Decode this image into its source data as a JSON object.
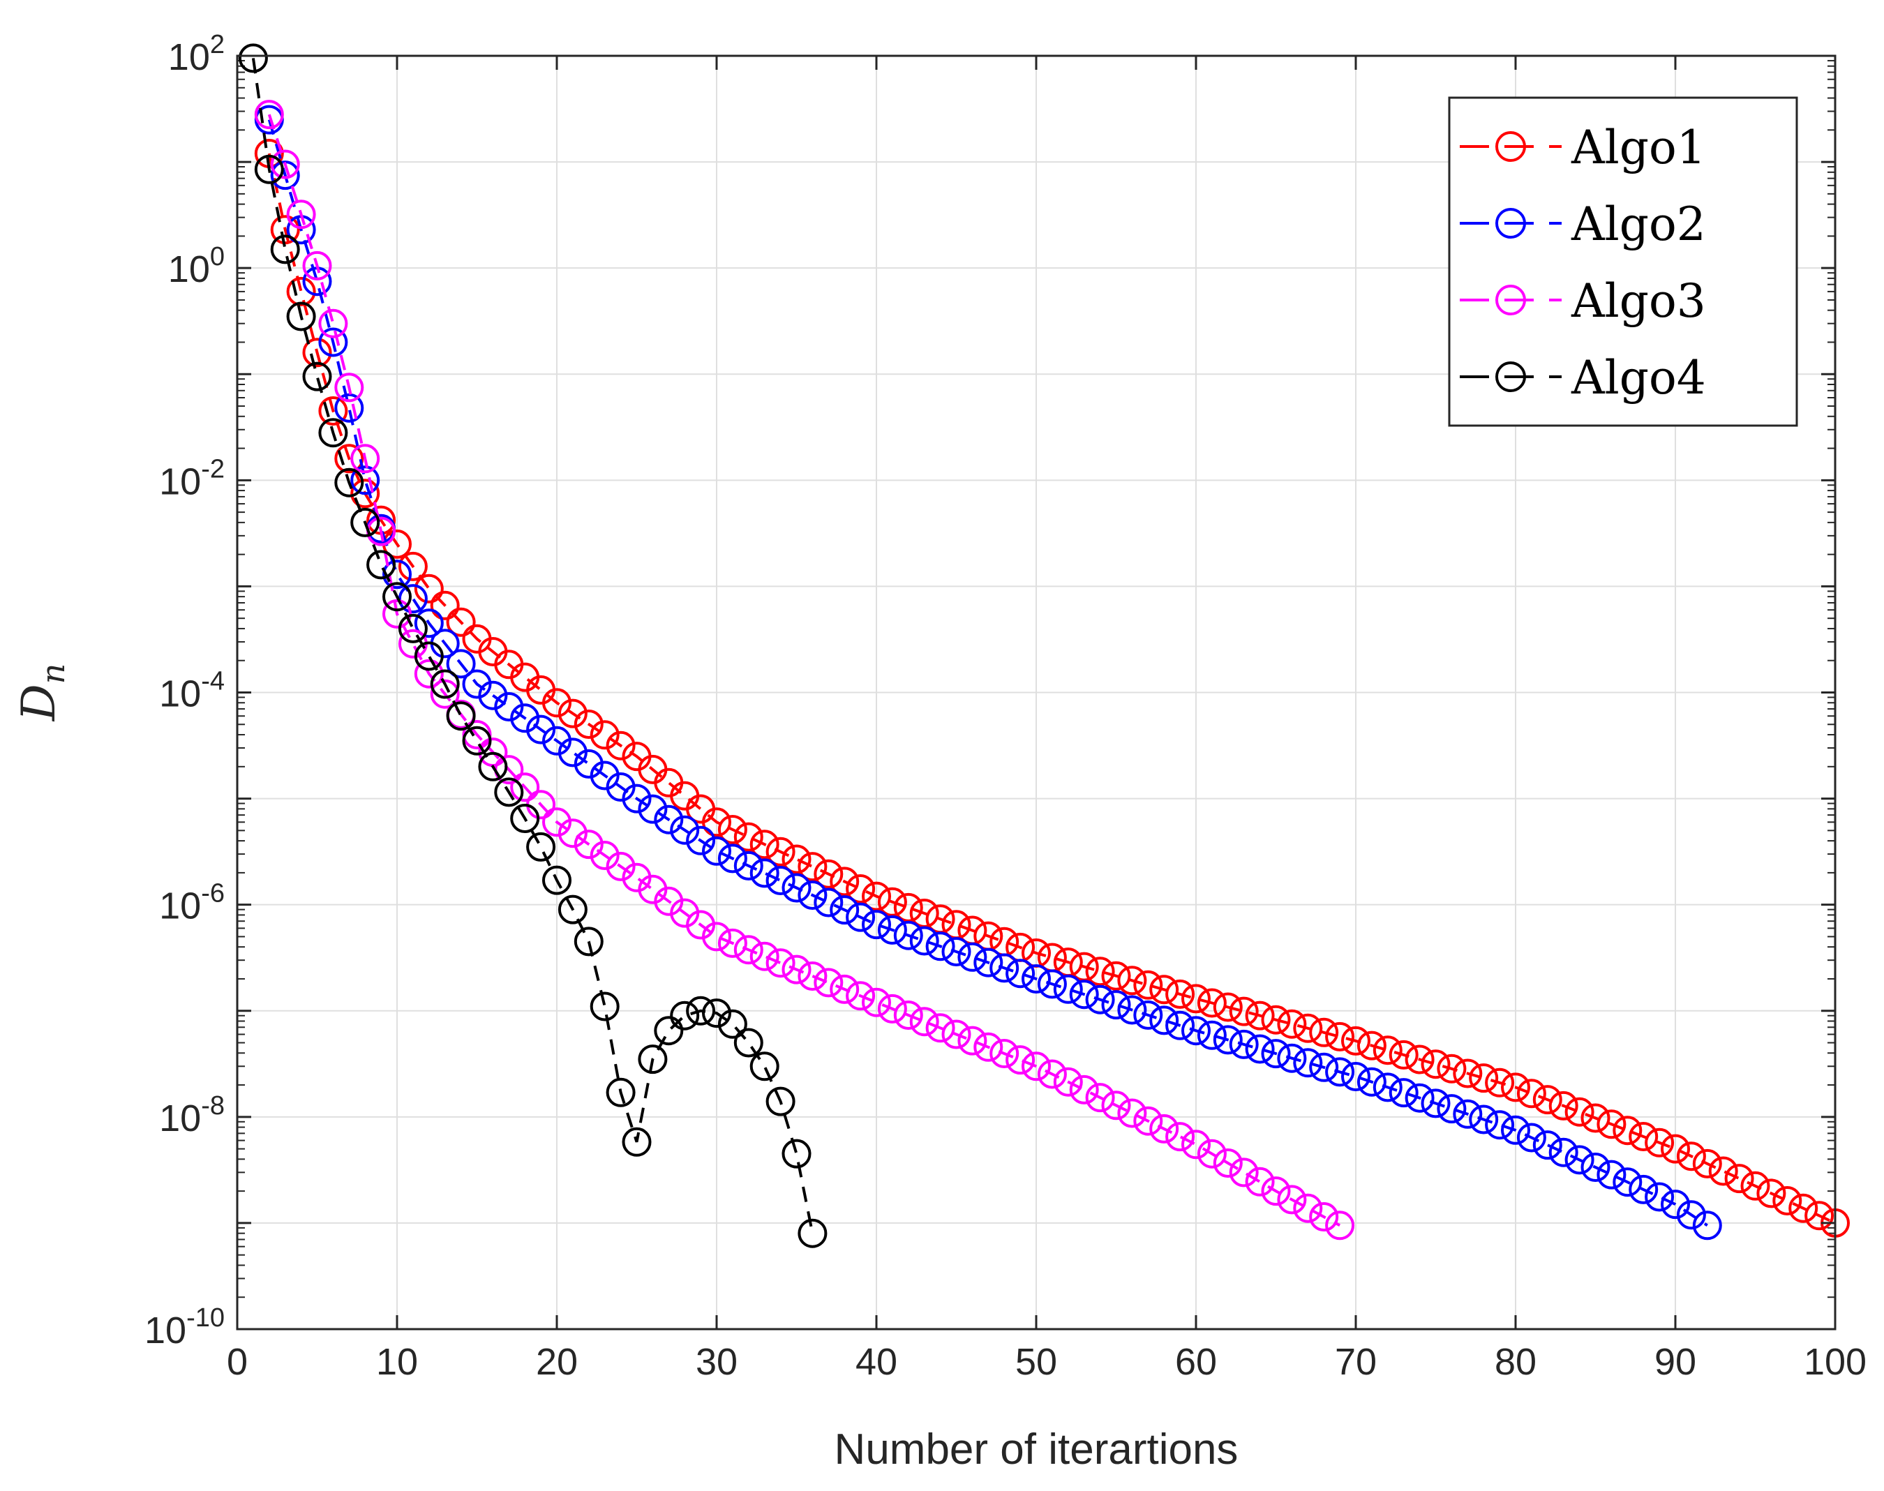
{
  "chart_data": {
    "type": "line",
    "title": "",
    "xlabel": "Number of iterartions",
    "ylabel": "D",
    "ylabel_sub": "n",
    "xscale": "linear",
    "yscale": "log",
    "xlim": [
      0,
      100
    ],
    "ylim": [
      1e-10,
      100
    ],
    "grid": true,
    "legend_position": "top-right",
    "x_ticks": [
      0,
      10,
      20,
      30,
      40,
      50,
      60,
      70,
      80,
      90,
      100
    ],
    "x_tick_labels": [
      "0",
      "10",
      "20",
      "30",
      "40",
      "50",
      "60",
      "70",
      "80",
      "90",
      "100"
    ],
    "y_ticks": [
      {
        "value": 100,
        "base": "10",
        "exp": "2"
      },
      {
        "value": 1,
        "base": "10",
        "exp": "0"
      },
      {
        "value": 0.01,
        "base": "10",
        "exp": "-2"
      },
      {
        "value": 0.0001,
        "base": "10",
        "exp": "-4"
      },
      {
        "value": 1e-06,
        "base": "10",
        "exp": "-6"
      },
      {
        "value": 1e-08,
        "base": "10",
        "exp": "-8"
      },
      {
        "value": 1e-10,
        "base": "10",
        "exp": "-10"
      }
    ],
    "series": [
      {
        "name": "Algo1",
        "color": "#ff0000",
        "marker": "circle",
        "line": "dashed",
        "x_start": 2,
        "x_end": 100,
        "points": [
          [
            2,
            12
          ],
          [
            3,
            2.3
          ],
          [
            4,
            0.6
          ],
          [
            5,
            0.16
          ],
          [
            6,
            0.045
          ],
          [
            7,
            0.016
          ],
          [
            8,
            0.0075
          ],
          [
            9,
            0.0042
          ],
          [
            10,
            0.0025
          ],
          [
            12,
            0.00095
          ],
          [
            15,
            0.00032
          ],
          [
            20,
            8e-05
          ],
          [
            25,
            2.5e-05
          ],
          [
            30,
            6e-06
          ],
          [
            40,
            1.2e-06
          ],
          [
            50,
            3.5e-07
          ],
          [
            60,
            1.3e-07
          ],
          [
            70,
            5.2e-08
          ],
          [
            80,
            1.9e-08
          ],
          [
            90,
            5e-09
          ],
          [
            100,
            1e-09
          ]
        ]
      },
      {
        "name": "Algo2",
        "color": "#0000ff",
        "marker": "circle",
        "line": "dashed",
        "x_start": 2,
        "x_end": 92,
        "points": [
          [
            2,
            25
          ],
          [
            3,
            7.5
          ],
          [
            4,
            2.3
          ],
          [
            5,
            0.75
          ],
          [
            6,
            0.2
          ],
          [
            7,
            0.048
          ],
          [
            8,
            0.01
          ],
          [
            9,
            0.0035
          ],
          [
            10,
            0.0013
          ],
          [
            12,
            0.00045
          ],
          [
            15,
            0.00012
          ],
          [
            20,
            3.5e-05
          ],
          [
            25,
            1e-05
          ],
          [
            30,
            3.2e-06
          ],
          [
            40,
            6.5e-07
          ],
          [
            50,
            2e-07
          ],
          [
            60,
            6.5e-08
          ],
          [
            70,
            2.4e-08
          ],
          [
            80,
            7.5e-09
          ],
          [
            90,
            1.5e-09
          ],
          [
            92,
            9.5e-10
          ]
        ]
      },
      {
        "name": "Algo3",
        "color": "#ff00ff",
        "marker": "circle",
        "line": "dashed",
        "x_start": 2,
        "x_end": 69,
        "points": [
          [
            2,
            28
          ],
          [
            3,
            9.5
          ],
          [
            4,
            3.2
          ],
          [
            5,
            1.05
          ],
          [
            6,
            0.3
          ],
          [
            7,
            0.075
          ],
          [
            8,
            0.016
          ],
          [
            9,
            0.0033
          ],
          [
            10,
            0.00055
          ],
          [
            12,
            0.00015
          ],
          [
            15,
            4e-05
          ],
          [
            20,
            6e-06
          ],
          [
            25,
            1.8e-06
          ],
          [
            30,
            5e-07
          ],
          [
            40,
            1.2e-07
          ],
          [
            50,
            3e-08
          ],
          [
            60,
            5.5e-09
          ],
          [
            65,
            2e-09
          ],
          [
            69,
            9.5e-10
          ]
        ]
      },
      {
        "name": "Algo4",
        "color": "#000000",
        "marker": "circle",
        "line": "dashed",
        "x_start": 1,
        "x_end": 36,
        "points": [
          [
            1,
            95
          ],
          [
            2,
            8.5
          ],
          [
            3,
            1.5
          ],
          [
            4,
            0.35
          ],
          [
            5,
            0.095
          ],
          [
            6,
            0.028
          ],
          [
            7,
            0.0095
          ],
          [
            8,
            0.004
          ],
          [
            9,
            0.0016
          ],
          [
            10,
            0.0008
          ],
          [
            11,
            0.0004
          ],
          [
            12,
            0.00022
          ],
          [
            13,
            0.00012
          ],
          [
            14,
            6e-05
          ],
          [
            15,
            3.5e-05
          ],
          [
            16,
            2e-05
          ],
          [
            17,
            1.15e-05
          ],
          [
            18,
            6.5e-06
          ],
          [
            19,
            3.5e-06
          ],
          [
            20,
            1.7e-06
          ],
          [
            21,
            9e-07
          ],
          [
            22,
            4.5e-07
          ],
          [
            23,
            1.1e-07
          ],
          [
            24,
            1.7e-08
          ],
          [
            25,
            5.8e-09
          ],
          [
            26,
            3.5e-08
          ],
          [
            27,
            6.5e-08
          ],
          [
            28,
            9e-08
          ],
          [
            29,
            1e-07
          ],
          [
            30,
            9.5e-08
          ],
          [
            31,
            7.5e-08
          ],
          [
            32,
            5e-08
          ],
          [
            33,
            3e-08
          ],
          [
            34,
            1.4e-08
          ],
          [
            35,
            4.5e-09
          ],
          [
            36,
            8e-10
          ]
        ]
      }
    ]
  }
}
